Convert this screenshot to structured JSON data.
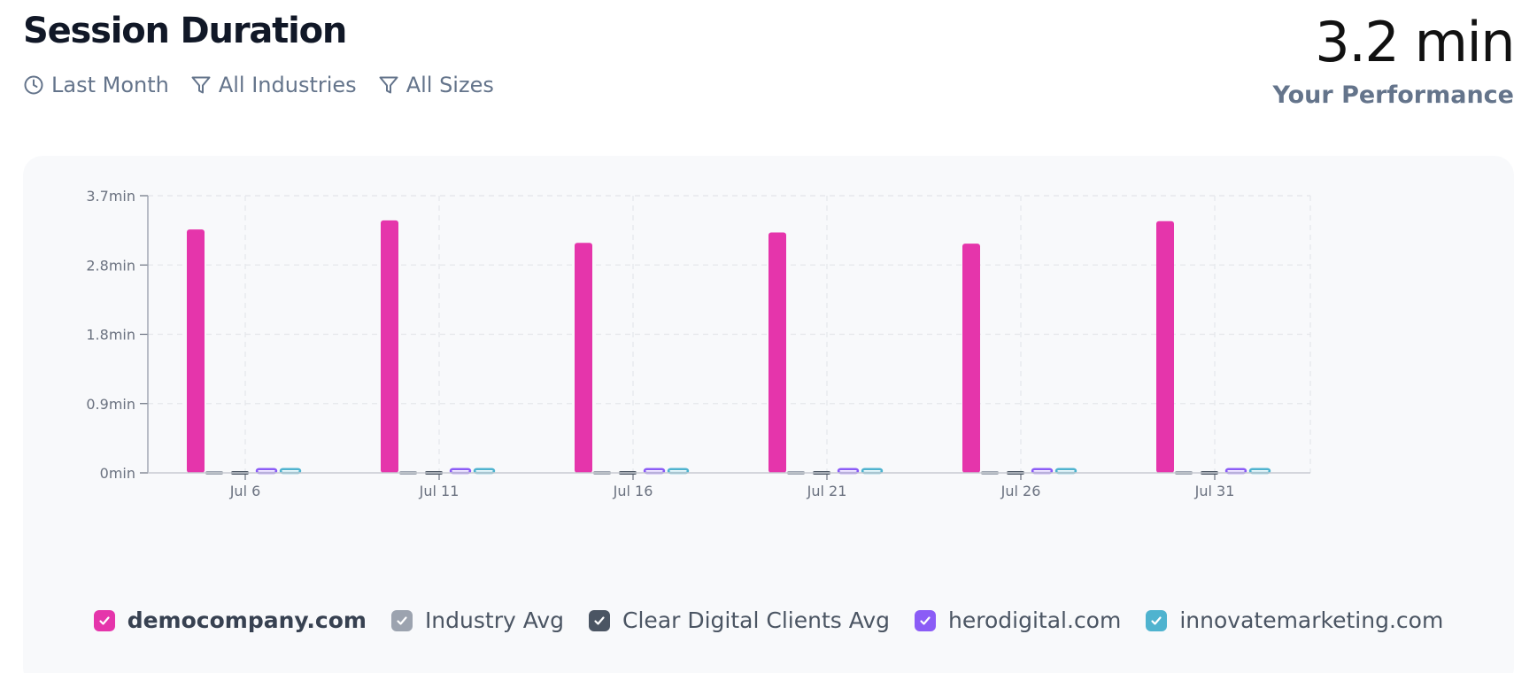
{
  "header": {
    "title": "Session Duration",
    "filters": [
      {
        "icon": "clock-icon",
        "label": "Last Month"
      },
      {
        "icon": "filter-icon",
        "label": "All Industries"
      },
      {
        "icon": "filter-icon",
        "label": "All Sizes"
      }
    ],
    "metric_value": "3.2 min",
    "metric_label": "Your Performance"
  },
  "legend": [
    {
      "label": "democompany.com",
      "color": "#e535ab",
      "checked": true
    },
    {
      "label": "Industry Avg",
      "color": "#9ca3af",
      "checked": true
    },
    {
      "label": "Clear Digital Clients Avg",
      "color": "#4b5563",
      "checked": true
    },
    {
      "label": "herodigital.com",
      "color": "#8b5cf6",
      "checked": true
    },
    {
      "label": "innovatemarketing.com",
      "color": "#4fb3cf",
      "checked": true
    }
  ],
  "chart_data": {
    "type": "bar",
    "categories": [
      "Jul 6",
      "Jul 11",
      "Jul 16",
      "Jul 21",
      "Jul 26",
      "Jul 31"
    ],
    "yticks": [
      "0min",
      "0.9min",
      "1.8min",
      "2.8min",
      "3.7min"
    ],
    "ylim": [
      0,
      3.7
    ],
    "grid": true,
    "legend_position": "bottom",
    "series": [
      {
        "name": "democompany.com",
        "color": "#e535ab",
        "values": [
          3.25,
          3.37,
          3.07,
          3.21,
          3.06,
          3.36
        ]
      },
      {
        "name": "Industry Avg",
        "color": "#9ca3af",
        "values": [
          0,
          0,
          0,
          0,
          0,
          0
        ]
      },
      {
        "name": "Clear Digital Clients Avg",
        "color": "#4b5563",
        "values": [
          0,
          0,
          0,
          0,
          0,
          0
        ]
      },
      {
        "name": "herodigital.com",
        "color": "#8b5cf6",
        "values": [
          0.05,
          0.05,
          0.05,
          0.05,
          0.05,
          0.05
        ]
      },
      {
        "name": "innovatemarketing.com",
        "color": "#4fb3cf",
        "values": [
          0.05,
          0.05,
          0.05,
          0.05,
          0.05,
          0.05
        ]
      }
    ]
  }
}
